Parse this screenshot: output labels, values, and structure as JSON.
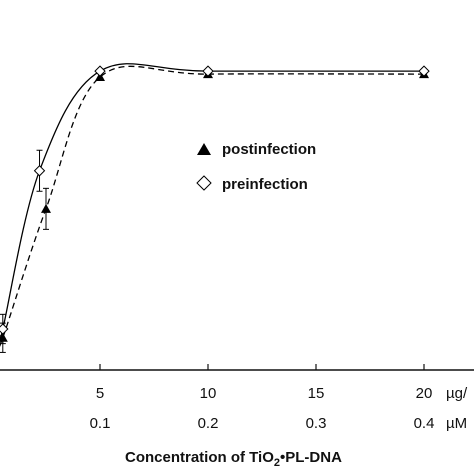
{
  "chart_data": {
    "type": "line",
    "xlabel": "Concentration of TiO",
    "xlabel_sub": "2",
    "xlabel_rest": "•PL-DNA",
    "x_ticks_primary": {
      "unit": "µg/",
      "values": [
        5,
        10,
        15,
        20
      ],
      "labels": [
        "5",
        "10",
        "15",
        "20"
      ]
    },
    "x_ticks_secondary": {
      "unit": "µM",
      "labels": [
        "0.1",
        "0.2",
        "0.3",
        "0.4"
      ]
    },
    "xlim": [
      0,
      20.5
    ],
    "ylim": [
      0,
      100
    ],
    "grid": false,
    "legend_position": "center",
    "series": [
      {
        "name": "postinfection",
        "marker": "filled-triangle",
        "line_style": "dashed",
        "points": [
          {
            "x": 0.5,
            "y": 11,
            "err": 5
          },
          {
            "x": 2.5,
            "y": 55,
            "err": 7
          },
          {
            "x": 5,
            "y": 100,
            "err": 0
          },
          {
            "x": 10,
            "y": 101,
            "err": 0
          },
          {
            "x": 20,
            "y": 101,
            "err": 0
          }
        ]
      },
      {
        "name": "preinfection",
        "marker": "open-diamond",
        "line_style": "solid",
        "points": [
          {
            "x": 0.5,
            "y": 14,
            "err": 5
          },
          {
            "x": 2.2,
            "y": 68,
            "err": 7
          },
          {
            "x": 5,
            "y": 102,
            "err": 0
          },
          {
            "x": 10,
            "y": 102,
            "err": 0
          },
          {
            "x": 20,
            "y": 102,
            "err": 0
          }
        ]
      }
    ]
  }
}
